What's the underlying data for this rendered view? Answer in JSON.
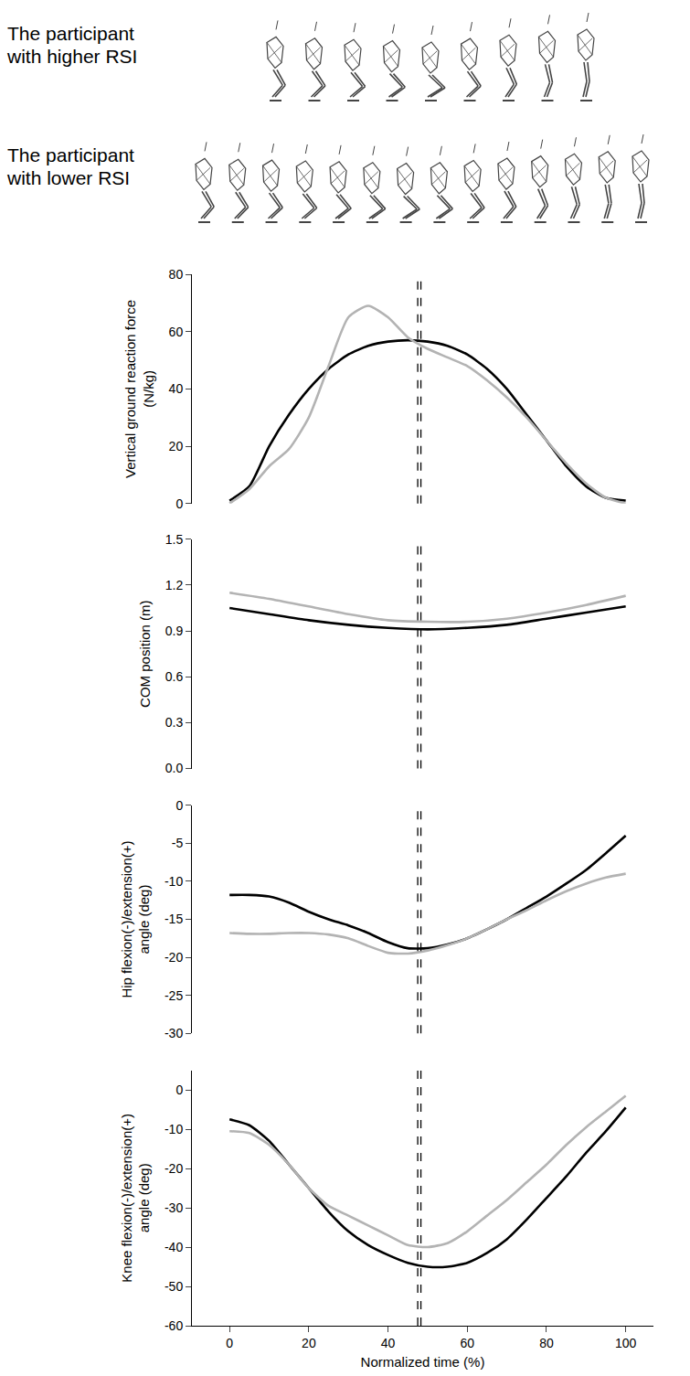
{
  "panels": [
    {
      "label": "The participant with higher RSI",
      "figures": 9
    },
    {
      "label": "The participant with lower RSI",
      "figures": 14
    }
  ],
  "chart_data": [
    {
      "type": "line",
      "ylabel": "Vertical ground reaction force (N/kg)",
      "ylim": [
        0,
        80
      ],
      "yticks": [
        0,
        20,
        40,
        60,
        80
      ],
      "vlines": [
        47.5,
        48.3
      ],
      "x": [
        0,
        5,
        10,
        15,
        20,
        25,
        30,
        35,
        40,
        45,
        50,
        55,
        60,
        65,
        70,
        75,
        80,
        85,
        90,
        95,
        100
      ],
      "series": [
        {
          "color": "#000000",
          "values": [
            1,
            6,
            20,
            31,
            40,
            47,
            52,
            55,
            56.5,
            57,
            56.5,
            55,
            52,
            47,
            40,
            31,
            22,
            13,
            6,
            2,
            1
          ]
        },
        {
          "color": "#b3b3b3",
          "values": [
            0,
            5,
            13,
            19,
            30,
            48,
            65,
            69,
            65,
            58,
            54,
            51,
            48,
            43,
            37,
            30,
            22,
            14,
            7,
            2,
            0
          ]
        }
      ]
    },
    {
      "type": "line",
      "ylabel": "COM position (m)",
      "ylim": [
        0,
        1.5
      ],
      "yticks": [
        {
          "value": 0,
          "label": "0.0"
        },
        0.3,
        0.6,
        0.9,
        1.2,
        1.5
      ],
      "vlines": [
        47.5,
        48.3
      ],
      "x": [
        0,
        10,
        20,
        30,
        40,
        50,
        60,
        70,
        80,
        90,
        100
      ],
      "series": [
        {
          "color": "#000000",
          "values": [
            1.05,
            1.01,
            0.97,
            0.94,
            0.92,
            0.91,
            0.92,
            0.94,
            0.98,
            1.02,
            1.06
          ]
        },
        {
          "color": "#b3b3b3",
          "values": [
            1.15,
            1.11,
            1.06,
            1.01,
            0.97,
            0.96,
            0.96,
            0.98,
            1.02,
            1.07,
            1.13
          ]
        }
      ]
    },
    {
      "type": "line",
      "ylabel": "Hip flexion(-)/extension(+) angle (deg)",
      "ylim": [
        -30,
        0
      ],
      "yticks": [
        -30,
        -25,
        -20,
        -15,
        -10,
        -5,
        0
      ],
      "vlines": [
        47.5,
        48.3
      ],
      "x": [
        0,
        5,
        10,
        15,
        20,
        25,
        30,
        35,
        40,
        45,
        50,
        55,
        60,
        65,
        70,
        75,
        80,
        85,
        90,
        95,
        100
      ],
      "series": [
        {
          "color": "#000000",
          "values": [
            -11.8,
            -11.8,
            -12.0,
            -12.8,
            -14.0,
            -15.0,
            -15.8,
            -16.8,
            -18.0,
            -18.8,
            -18.8,
            -18.3,
            -17.5,
            -16.3,
            -15.0,
            -13.5,
            -12.0,
            -10.3,
            -8.5,
            -6.3,
            -4.0
          ]
        },
        {
          "color": "#b3b3b3",
          "values": [
            -16.8,
            -16.9,
            -16.9,
            -16.8,
            -16.8,
            -17.0,
            -17.5,
            -18.5,
            -19.4,
            -19.5,
            -19.1,
            -18.4,
            -17.5,
            -16.3,
            -15.0,
            -13.8,
            -12.5,
            -11.3,
            -10.3,
            -9.5,
            -9.0
          ]
        }
      ]
    },
    {
      "type": "line",
      "ylabel": "Knee flexion(-)/extension(+) angle (deg)",
      "xlabel": "Normalized time (%)",
      "xlim": [
        -9.5,
        107
      ],
      "xticks": [
        0,
        20,
        40,
        60,
        80,
        100
      ],
      "ylim": [
        -60,
        5
      ],
      "yticks": [
        -60,
        -50,
        -40,
        -30,
        -20,
        -10,
        0
      ],
      "vlines": [
        47.5,
        48.3
      ],
      "x": [
        0,
        5,
        10,
        15,
        20,
        25,
        30,
        35,
        40,
        45,
        50,
        55,
        60,
        65,
        70,
        75,
        80,
        85,
        90,
        95,
        100
      ],
      "series": [
        {
          "color": "#000000",
          "values": [
            -7.5,
            -9,
            -13,
            -19,
            -25,
            -31,
            -36,
            -39.5,
            -42,
            -44,
            -45,
            -45,
            -44,
            -41.5,
            -38,
            -33,
            -27.5,
            -22,
            -16,
            -10.5,
            -4.5
          ]
        },
        {
          "color": "#b3b3b3",
          "values": [
            -10.5,
            -11,
            -14,
            -19,
            -25,
            -29.5,
            -32,
            -34.5,
            -37,
            -39.5,
            -40,
            -39,
            -36,
            -32,
            -28,
            -23.5,
            -19,
            -14,
            -9.5,
            -5.5,
            -1.5
          ]
        }
      ]
    }
  ]
}
